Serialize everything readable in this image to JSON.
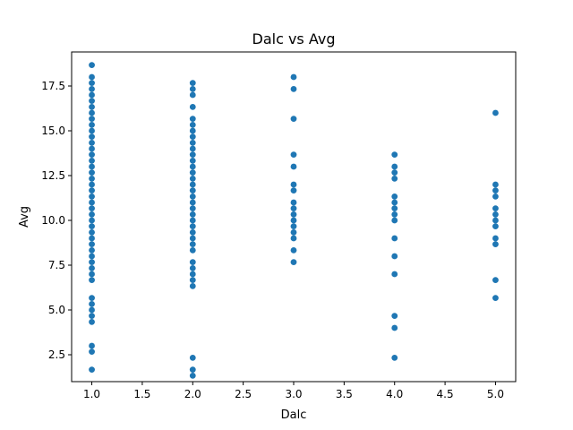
{
  "chart_data": {
    "type": "scatter",
    "title": "Dalc vs Avg",
    "xlabel": "Dalc",
    "ylabel": "Avg",
    "xlim": [
      0.8,
      5.2
    ],
    "ylim": [
      1.0,
      19.4
    ],
    "xticks": [
      1.0,
      1.5,
      2.0,
      2.5,
      3.0,
      3.5,
      4.0,
      4.5,
      5.0
    ],
    "xtick_labels": [
      "1.0",
      "1.5",
      "2.0",
      "2.5",
      "3.0",
      "3.5",
      "4.0",
      "4.5",
      "5.0"
    ],
    "yticks": [
      2.5,
      5.0,
      7.5,
      10.0,
      12.5,
      15.0,
      17.5
    ],
    "ytick_labels": [
      "2.5",
      "5.0",
      "7.5",
      "10.0",
      "12.5",
      "15.0",
      "17.5"
    ],
    "grid": false,
    "marker_color": "#1f77b4",
    "series": [
      {
        "x": 1,
        "y": [
          1.67,
          2.67,
          3.0,
          4.33,
          4.67,
          5.0,
          5.33,
          5.67,
          6.67,
          7.0,
          7.33,
          7.67,
          8.0,
          8.33,
          8.67,
          9.0,
          9.33,
          9.67,
          10.0,
          10.33,
          10.67,
          11.0,
          11.33,
          11.67,
          12.0,
          12.33,
          12.67,
          13.0,
          13.33,
          13.67,
          14.0,
          14.33,
          14.67,
          15.0,
          15.33,
          15.67,
          16.0,
          16.33,
          16.67,
          17.0,
          17.33,
          17.67,
          18.0,
          18.67
        ]
      },
      {
        "x": 2,
        "y": [
          1.33,
          1.67,
          2.33,
          6.33,
          6.67,
          7.0,
          7.33,
          7.67,
          8.33,
          8.67,
          9.0,
          9.33,
          9.67,
          10.0,
          10.33,
          10.67,
          11.0,
          11.33,
          11.67,
          12.0,
          12.33,
          12.67,
          13.0,
          13.33,
          13.67,
          14.0,
          14.33,
          14.67,
          15.0,
          15.33,
          15.67,
          16.33,
          17.0,
          17.33,
          17.67
        ]
      },
      {
        "x": 3,
        "y": [
          7.67,
          8.33,
          9.0,
          9.33,
          9.67,
          10.0,
          10.33,
          10.67,
          11.0,
          11.67,
          12.0,
          13.0,
          13.67,
          15.67,
          17.33,
          18.0
        ]
      },
      {
        "x": 4,
        "y": [
          2.33,
          4.0,
          4.67,
          7.0,
          8.0,
          9.0,
          10.0,
          10.33,
          10.67,
          11.0,
          11.33,
          12.33,
          12.67,
          13.0,
          13.67
        ]
      },
      {
        "x": 5,
        "y": [
          5.67,
          6.67,
          8.67,
          9.0,
          9.67,
          10.0,
          10.33,
          10.67,
          11.33,
          11.67,
          12.0,
          16.0
        ]
      }
    ]
  }
}
